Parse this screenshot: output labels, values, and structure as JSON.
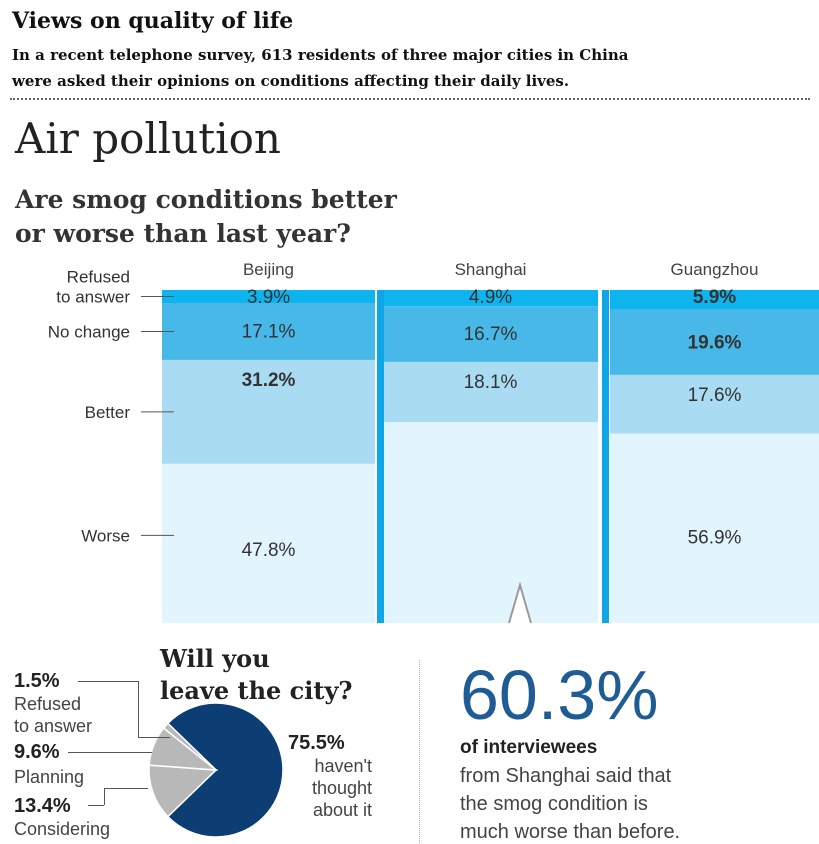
{
  "header": {
    "title": "Views on quality of life",
    "intro_line1": "In a recent telephone survey, 613 residents of three major cities in China",
    "intro_line2": "were asked their opinions on conditions affecting their daily lives."
  },
  "section_title": "Air pollution",
  "question_line1": "Are smog conditions better",
  "question_line2": "or worse than last year?",
  "colors": {
    "refused": "#0db4ee",
    "no_change": "#48b8e8",
    "better": "#a9dcf3",
    "worse": "#e2f4fc",
    "separator": "#0ea6e6",
    "pie_main": "#0c3d73",
    "pie_other": "#b8b8b8",
    "stat": "#1f5c96"
  },
  "chart_data": [
    {
      "type": "bar",
      "stacked": true,
      "percent": true,
      "title": "Are smog conditions better or worse than last year?",
      "categories": [
        "Beijing",
        "Shanghai",
        "Guangzhou"
      ],
      "series": [
        {
          "name": "Refused to answer",
          "values": [
            3.9,
            4.9,
            5.9
          ],
          "labels": [
            "3.9%",
            "4.9%",
            "5.9%"
          ]
        },
        {
          "name": "No change",
          "values": [
            17.1,
            16.7,
            19.6
          ],
          "labels": [
            "17.1%",
            "16.7%",
            "19.6%"
          ]
        },
        {
          "name": "Better",
          "values": [
            31.2,
            18.1,
            17.6
          ],
          "labels": [
            "31.2%",
            "18.1%",
            "17.6%"
          ]
        },
        {
          "name": "Worse",
          "values": [
            47.8,
            60.3,
            56.9
          ],
          "labels": [
            "47.8%",
            "",
            "56.9%"
          ]
        }
      ],
      "bold_labels": [
        [
          "Beijing",
          "Better"
        ],
        [
          "Guangzhou",
          "Refused to answer"
        ],
        [
          "Guangzhou",
          "No change"
        ]
      ],
      "left_labels": [
        [
          "Refused",
          "to answer"
        ],
        [
          "No change"
        ],
        [
          "Better"
        ],
        [
          "Worse"
        ]
      ],
      "ylim": [
        0,
        100
      ]
    },
    {
      "type": "pie",
      "title": "Will you leave the city?",
      "slices": [
        {
          "name": "haven't thought about it",
          "value": 75.5,
          "label": "75.5%",
          "text": [
            "haven't",
            "thought",
            "about it"
          ]
        },
        {
          "name": "Considering",
          "value": 13.4,
          "label": "13.4%",
          "text": [
            "Considering"
          ]
        },
        {
          "name": "Planning",
          "value": 9.6,
          "label": "9.6%",
          "text": [
            "Planning"
          ]
        },
        {
          "name": "Refused to answer",
          "value": 1.5,
          "label": "1.5%",
          "text": [
            "Refused",
            "to answer"
          ]
        }
      ]
    }
  ],
  "pie_title_line1": "Will you",
  "pie_title_line2": "leave the city?",
  "callout": {
    "big": "60.3%",
    "bold": "of interviewees",
    "line1": "from Shanghai said that",
    "line2": "the smog condition is",
    "line3": "much worse than before."
  }
}
